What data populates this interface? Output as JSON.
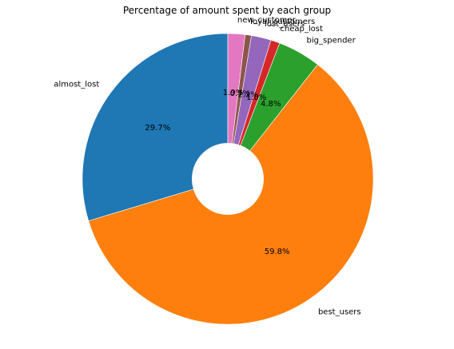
{
  "chart_data": {
    "type": "pie",
    "title": "Percentage of amount spent by each group",
    "series": [
      {
        "name": "almost_lost",
        "value": 29.7,
        "pct_label": "29.7%",
        "color": "#1f77b4"
      },
      {
        "name": "best_users",
        "value": 59.8,
        "pct_label": "59.8%",
        "color": "#ff7f0e"
      },
      {
        "name": "big_spender",
        "value": 4.8,
        "pct_label": "4.8%",
        "color": "#2ca02c"
      },
      {
        "name": "cheap_lost",
        "value": 1.0,
        "pct_label": "1.0%",
        "color": "#d62728"
      },
      {
        "name": "lost_users",
        "value": 2.2,
        "pct_label": "2.2%",
        "color": "#9467bd"
      },
      {
        "name": "loyal_customers",
        "value": 0.7,
        "pct_label": "0.7%",
        "color": "#8c564b"
      },
      {
        "name": "new_customer",
        "value": 1.9,
        "pct_label": "1.9%",
        "color": "#e377c2"
      }
    ],
    "start_angle_deg": 90,
    "direction": "counterclockwise",
    "donut_hole": true
  }
}
